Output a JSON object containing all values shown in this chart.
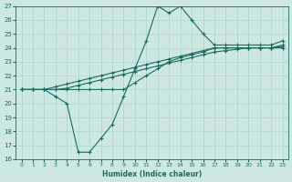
{
  "xlabel": "Humidex (Indice chaleur)",
  "bg_color": "#cde8e3",
  "grid_color": "#b0d4ce",
  "line_color": "#1a6b60",
  "xlim": [
    -0.5,
    23.5
  ],
  "ylim": [
    16,
    27
  ],
  "xticks": [
    0,
    1,
    2,
    3,
    4,
    5,
    6,
    7,
    8,
    9,
    10,
    11,
    12,
    13,
    14,
    15,
    16,
    17,
    18,
    19,
    20,
    21,
    22,
    23
  ],
  "yticks": [
    16,
    17,
    18,
    19,
    20,
    21,
    22,
    23,
    24,
    25,
    26,
    27
  ],
  "series": [
    {
      "x": [
        0,
        1,
        2,
        3,
        4,
        5,
        6,
        7,
        8,
        9,
        10,
        11,
        12,
        13,
        14,
        15,
        16,
        17,
        18,
        19,
        20,
        21,
        22,
        23
      ],
      "y": [
        21,
        21,
        21,
        20.5,
        20,
        16.5,
        16.5,
        17.5,
        18.5,
        20.5,
        22.5,
        24.5,
        27,
        26.5,
        27,
        26,
        25,
        24.2,
        24.2,
        24.2,
        24.2,
        24.2,
        24.2,
        24.5
      ]
    },
    {
      "x": [
        0,
        1,
        2,
        3,
        4,
        5,
        6,
        7,
        8,
        9,
        10,
        11,
        12,
        13,
        14,
        15,
        16,
        17,
        18,
        19,
        20,
        21,
        22,
        23
      ],
      "y": [
        21,
        21,
        21,
        21,
        21,
        21,
        21,
        21,
        21,
        21,
        21.5,
        22,
        22.5,
        23,
        23.3,
        23.5,
        23.7,
        24,
        24,
        24,
        24,
        24,
        24,
        24
      ]
    },
    {
      "x": [
        0,
        1,
        2,
        3,
        4,
        5,
        6,
        7,
        8,
        9,
        10,
        11,
        12,
        13,
        14,
        15,
        16,
        17,
        18,
        19,
        20,
        21,
        22,
        23
      ],
      "y": [
        21,
        21,
        21,
        21,
        21.1,
        21.3,
        21.5,
        21.7,
        21.9,
        22.1,
        22.3,
        22.5,
        22.7,
        22.9,
        23.1,
        23.3,
        23.5,
        23.7,
        23.8,
        23.9,
        24,
        24,
        24,
        24.1
      ]
    },
    {
      "x": [
        0,
        1,
        2,
        3,
        4,
        5,
        6,
        7,
        8,
        9,
        10,
        11,
        12,
        13,
        14,
        15,
        16,
        17,
        18,
        19,
        20,
        21,
        22,
        23
      ],
      "y": [
        21,
        21,
        21,
        21.2,
        21.4,
        21.6,
        21.8,
        22.0,
        22.2,
        22.4,
        22.6,
        22.8,
        23.0,
        23.2,
        23.4,
        23.6,
        23.8,
        24.0,
        24.0,
        24.0,
        24.0,
        24.0,
        24.0,
        24.2
      ]
    }
  ],
  "figsize": [
    3.2,
    2.0
  ],
  "dpi": 100
}
